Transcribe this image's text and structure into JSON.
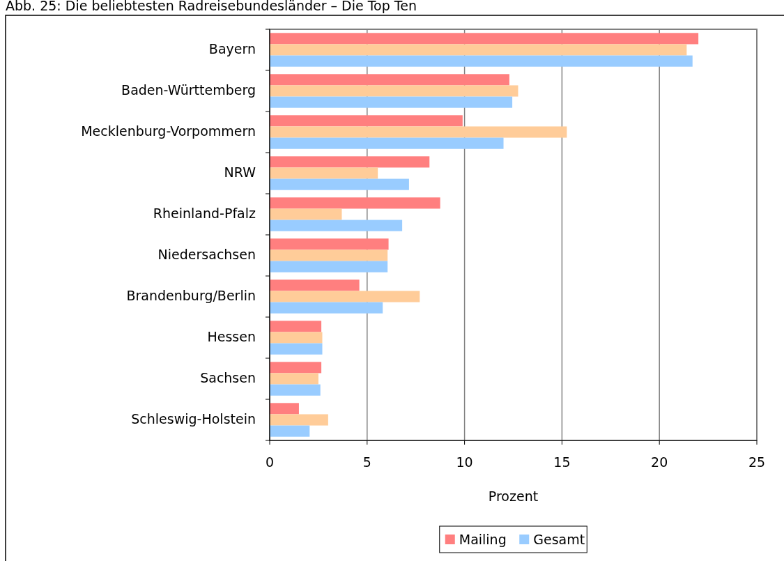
{
  "chart_data": {
    "type": "bar",
    "orientation": "horizontal",
    "title": "Abb. 25: Die beliebtesten Radreisebundesländer – Die Top Ten",
    "xlabel": "Prozent",
    "categories": [
      "Bayern",
      "Baden-Württemberg",
      "Mecklenburg-Vorpommern",
      "NRW",
      "Rheinland-Pfalz",
      "Niedersachsen",
      "Brandenburg/Berlin",
      "Hessen",
      "Sachsen",
      "Schleswig-Holstein"
    ],
    "series": [
      {
        "name": "Mailing",
        "color": "#ff7f7f",
        "values": [
          22.0,
          12.3,
          9.9,
          8.2,
          8.75,
          6.1,
          4.6,
          2.65,
          2.65,
          1.5
        ]
      },
      {
        "color": "#ffcc99",
        "values": [
          21.4,
          12.75,
          15.25,
          5.55,
          3.7,
          6.05,
          7.7,
          2.7,
          2.5,
          3.0
        ]
      },
      {
        "name": "Gesamt",
        "color": "#99ccff",
        "values": [
          21.7,
          12.45,
          12.0,
          7.15,
          6.8,
          6.05,
          5.8,
          2.7,
          2.6,
          2.05
        ]
      }
    ],
    "xlim": [
      0,
      25
    ],
    "xticks": [
      0,
      5,
      10,
      15,
      20,
      25
    ],
    "grid": "x",
    "legend": "bottom"
  }
}
